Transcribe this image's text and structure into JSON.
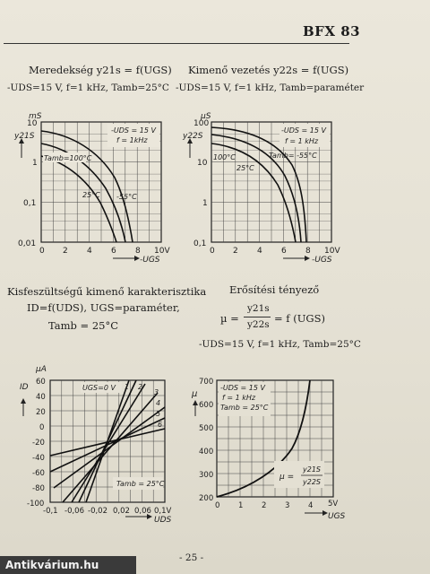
{
  "header": {
    "part_number": "BFX 83"
  },
  "sections": {
    "top_left": {
      "title": "Meredekség y21s = f(UGS)",
      "conditions": "-UDS=15 V, f=1 kHz, Tamb=25°C",
      "y_unit": "mS",
      "y_symbol": "y21S",
      "x_symbol": "-UGS",
      "y_ticks": [
        "10",
        "1",
        "0,1",
        "0,01"
      ],
      "x_ticks": [
        "0",
        "2",
        "4",
        "6",
        "8",
        "10V"
      ],
      "legend": "-UDS = 15 V",
      "legend2": "f = 1kHz",
      "curve_labels": [
        "Tamb=100°C",
        "25°C",
        "-55°C"
      ]
    },
    "top_right": {
      "title": "Kimenő vezetés y22s = f(UGS)",
      "conditions": "-UDS=15 V, f=1 kHz, Tamb=paraméter",
      "y_unit": "µS",
      "y_symbol": "y22S",
      "x_symbol": "-UGS",
      "y_ticks": [
        "100",
        "10",
        "1",
        "0,1"
      ],
      "x_ticks": [
        "0",
        "2",
        "4",
        "6",
        "8",
        "10V"
      ],
      "legend": "-UDS = 15 V",
      "legend2": "f = 1 kHz",
      "curve_labels": [
        "100°C",
        "25°C",
        "Tamb= -55°C"
      ]
    },
    "bottom_left": {
      "title": "Kisfeszültségű kimenő karakterisztika",
      "line2": "ID=f(UDS), UGS=paraméter,",
      "line3": "Tamb = 25°C",
      "y_unit": "µA",
      "y_symbol": "ID",
      "x_symbol": "UDS",
      "y_ticks": [
        "60",
        "40",
        "20",
        "0",
        "-20",
        "-40",
        "-60",
        "-80",
        "-100"
      ],
      "x_ticks": [
        "-0,1",
        "-0,06",
        "-0,02",
        "0,02",
        "0,06",
        "0,1V"
      ],
      "curve_labels": [
        "UGS=0 V",
        "1",
        "2",
        "3",
        "4",
        "5",
        "6"
      ],
      "legend": "Tamb = 25°C"
    },
    "bottom_right": {
      "title": "Erősítési tényező",
      "formula_lhs": "µ =",
      "formula_num": "y21s",
      "formula_den": "y22s",
      "formula_rhs": "= f (UGS)",
      "conditions": "-UDS=15 V, f=1 kHz, Tamb=25°C",
      "y_ticks": [
        "700",
        "600",
        "500",
        "400",
        "300",
        "200"
      ],
      "x_ticks": [
        "0",
        "1",
        "2",
        "3",
        "4",
        "5V"
      ],
      "x_symbol": "UGS",
      "legend": "-UDS = 15 V",
      "legend2": "f = 1 kHz",
      "legend3": "Tamb = 25°C",
      "mu_label": "µ =",
      "mu_num": "y21S",
      "mu_den": "y22S"
    }
  },
  "footer": {
    "page": "- 25 -",
    "watermark": "Antikvárium.hu"
  }
}
